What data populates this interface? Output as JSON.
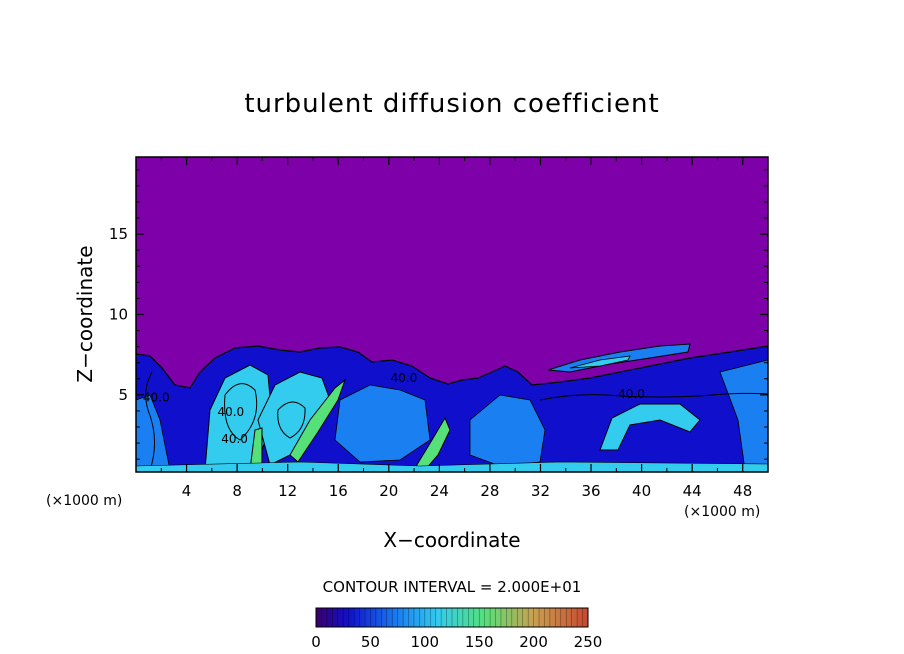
{
  "chart_data": {
    "type": "heatmap",
    "title": "turbulent diffusion coefficient",
    "xlabel": "X−coordinate",
    "ylabel": "Z−coordinate",
    "x_unit": "(×1000 m)",
    "y_unit": "(×1000 m)",
    "xlim": [
      0,
      50
    ],
    "ylim": [
      0.2,
      19.8
    ],
    "x_ticks": [
      4,
      8,
      12,
      16,
      20,
      24,
      28,
      32,
      36,
      40,
      44,
      48
    ],
    "y_ticks": [
      5,
      10,
      15
    ],
    "contour_interval_text": "CONTOUR INTERVAL = 2.000E+01",
    "contour_labels": [
      {
        "text": "40.0",
        "x": 21.2,
        "z": 5.8
      },
      {
        "text": "40.0",
        "x": 7.5,
        "z": 3.7
      },
      {
        "text": "40.0",
        "x": 7.8,
        "z": 2.0
      },
      {
        "text": "40.0",
        "x": 39.2,
        "z": 4.8
      },
      {
        "text": "40.0",
        "x": 1.6,
        "z": 4.6
      }
    ],
    "colorbar": {
      "min": 0,
      "max": 250,
      "tick_values": [
        0,
        50,
        100,
        150,
        200,
        250
      ],
      "tick_labels": [
        "0",
        "50",
        "100",
        "150",
        "200",
        "250"
      ]
    },
    "colors": {
      "background": "#7e00a8",
      "low": "#1010cc",
      "mid": "#1a7ff0",
      "cyan": "#33ccee",
      "green": "#55e07a",
      "high": "#c84830"
    }
  }
}
